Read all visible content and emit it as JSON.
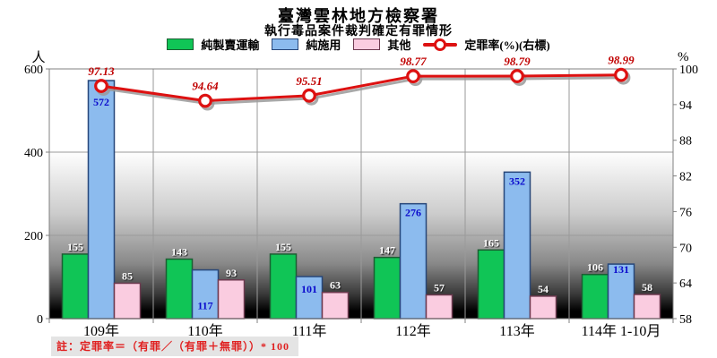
{
  "title": "臺灣雲林地方檢察署",
  "subtitle": "執行毒品案件裁判確定有罪情形",
  "footnote": "註：定罪率＝（有罪／（有罪＋無罪））* 100",
  "left_axis": {
    "title": "人",
    "min": 0,
    "max": 600,
    "ticks": [
      0,
      200,
      400,
      600
    ]
  },
  "right_axis": {
    "title": "%",
    "min": 58,
    "max": 100,
    "ticks": [
      58,
      64,
      70,
      76,
      82,
      88,
      94,
      100
    ]
  },
  "chart_data": {
    "type": "bar",
    "title": "臺灣雲林地方檢察署 執行毒品案件裁判確定有罪情形",
    "categories": [
      "109年",
      "110年",
      "111年",
      "112年",
      "113年",
      "114年 1-10月"
    ],
    "left_ylim": [
      0,
      600
    ],
    "right_ylim": [
      58,
      100
    ],
    "grid": "on",
    "legend_position": "top",
    "series": [
      {
        "name": "純製賣運輸",
        "type": "bar",
        "axis": "left",
        "color": "#10C556",
        "border": "#1B5E32",
        "label_color": "#ffffff",
        "values": [
          155,
          143,
          155,
          147,
          165,
          106
        ]
      },
      {
        "name": "純施用",
        "type": "bar",
        "axis": "left",
        "color": "#8CBBEE",
        "border": "#27477A",
        "label_color": "#0A0ACC",
        "values": [
          572,
          117,
          101,
          276,
          352,
          131
        ],
        "label_dy": [
          28,
          44,
          18,
          14,
          14,
          10
        ]
      },
      {
        "name": "其他",
        "type": "bar",
        "axis": "left",
        "color": "#FACCE0",
        "border": "#6E3A50",
        "label_color": "#ffffff",
        "values": [
          85,
          93,
          63,
          57,
          54,
          58
        ]
      },
      {
        "name": "定罪率(%)(右標)",
        "type": "line",
        "axis": "right",
        "color": "#DD1111",
        "marker": "open-circle",
        "label_color": "#C00000",
        "values": [
          97.13,
          94.64,
          95.51,
          98.77,
          98.79,
          98.99
        ]
      }
    ]
  }
}
